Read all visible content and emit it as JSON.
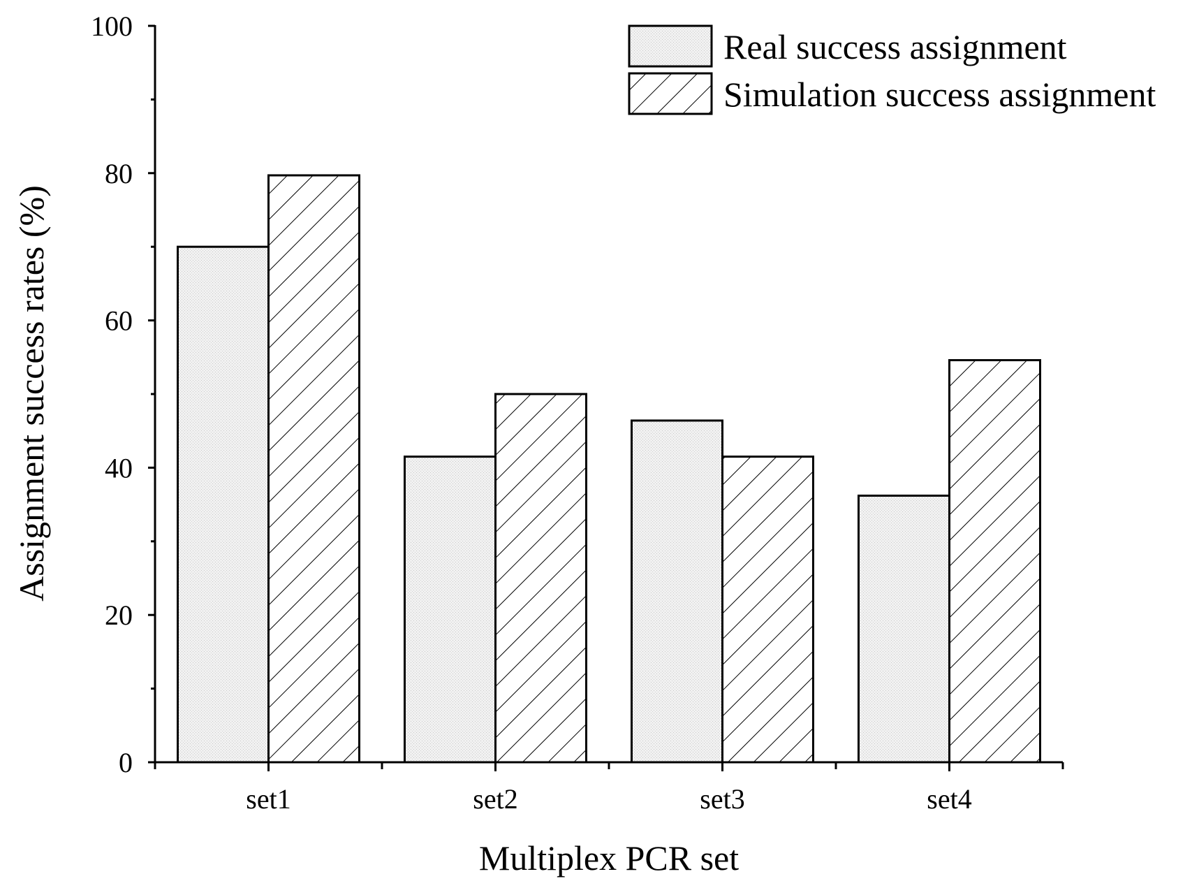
{
  "chart_data": {
    "type": "bar",
    "categories": [
      "set1",
      "set2",
      "set3",
      "set4"
    ],
    "series": [
      {
        "name": "Real success assignment",
        "pattern": "dotted",
        "values": [
          70.0,
          41.5,
          46.4,
          36.2
        ]
      },
      {
        "name": "Simulation success assignment",
        "pattern": "hatched",
        "values": [
          79.7,
          50.0,
          41.5,
          54.6
        ]
      }
    ],
    "xlabel": "Multiplex PCR set",
    "ylabel": "Assignment success rates (%)",
    "ylim": [
      0,
      100
    ],
    "yticks": [
      "0",
      "20",
      "40",
      "60",
      "80",
      "100"
    ],
    "grid": false,
    "legend_position": "top-right"
  }
}
